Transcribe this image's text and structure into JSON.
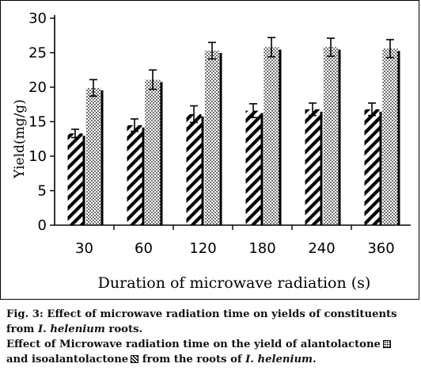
{
  "chart_data": {
    "type": "bar",
    "title": "",
    "xlabel": "Duration of microwave radiation (s)",
    "ylabel": "Yield(mg/g)",
    "ylim": [
      0,
      30
    ],
    "yticks": [
      0,
      5,
      10,
      15,
      20,
      25,
      30
    ],
    "grid": false,
    "legend": "none",
    "categories": [
      "30",
      "60",
      "120",
      "180",
      "240",
      "360"
    ],
    "series": [
      {
        "name": "isoalantolactone",
        "pattern": "diagonal-hatch",
        "values": [
          13.3,
          14.5,
          16.1,
          16.6,
          16.8,
          16.8
        ],
        "errors": [
          0.6,
          0.9,
          1.2,
          1.0,
          0.9,
          0.9
        ]
      },
      {
        "name": "alantolactone",
        "pattern": "dots",
        "values": [
          19.9,
          21.1,
          25.3,
          25.8,
          25.8,
          25.6
        ],
        "errors": [
          1.2,
          1.4,
          1.2,
          1.4,
          1.3,
          1.3
        ]
      }
    ]
  },
  "caption": {
    "line1": "Fig. 3: Effect of microwave radiation time on yields of constituents",
    "line2_prefix": "from ",
    "line2_species": "I. helenium",
    "line2_suffix": " roots.",
    "line3": "Effect of Microwave radiation time on the yield of alantolactone",
    "line4_prefix": "and isoalantolactone",
    "line4_middle": " from the roots of ",
    "line4_species": "I. helenium",
    "line4_suffix": "."
  },
  "colors": {
    "ink": "#000000",
    "background": "#ffffff",
    "caption_text": "#111111"
  }
}
